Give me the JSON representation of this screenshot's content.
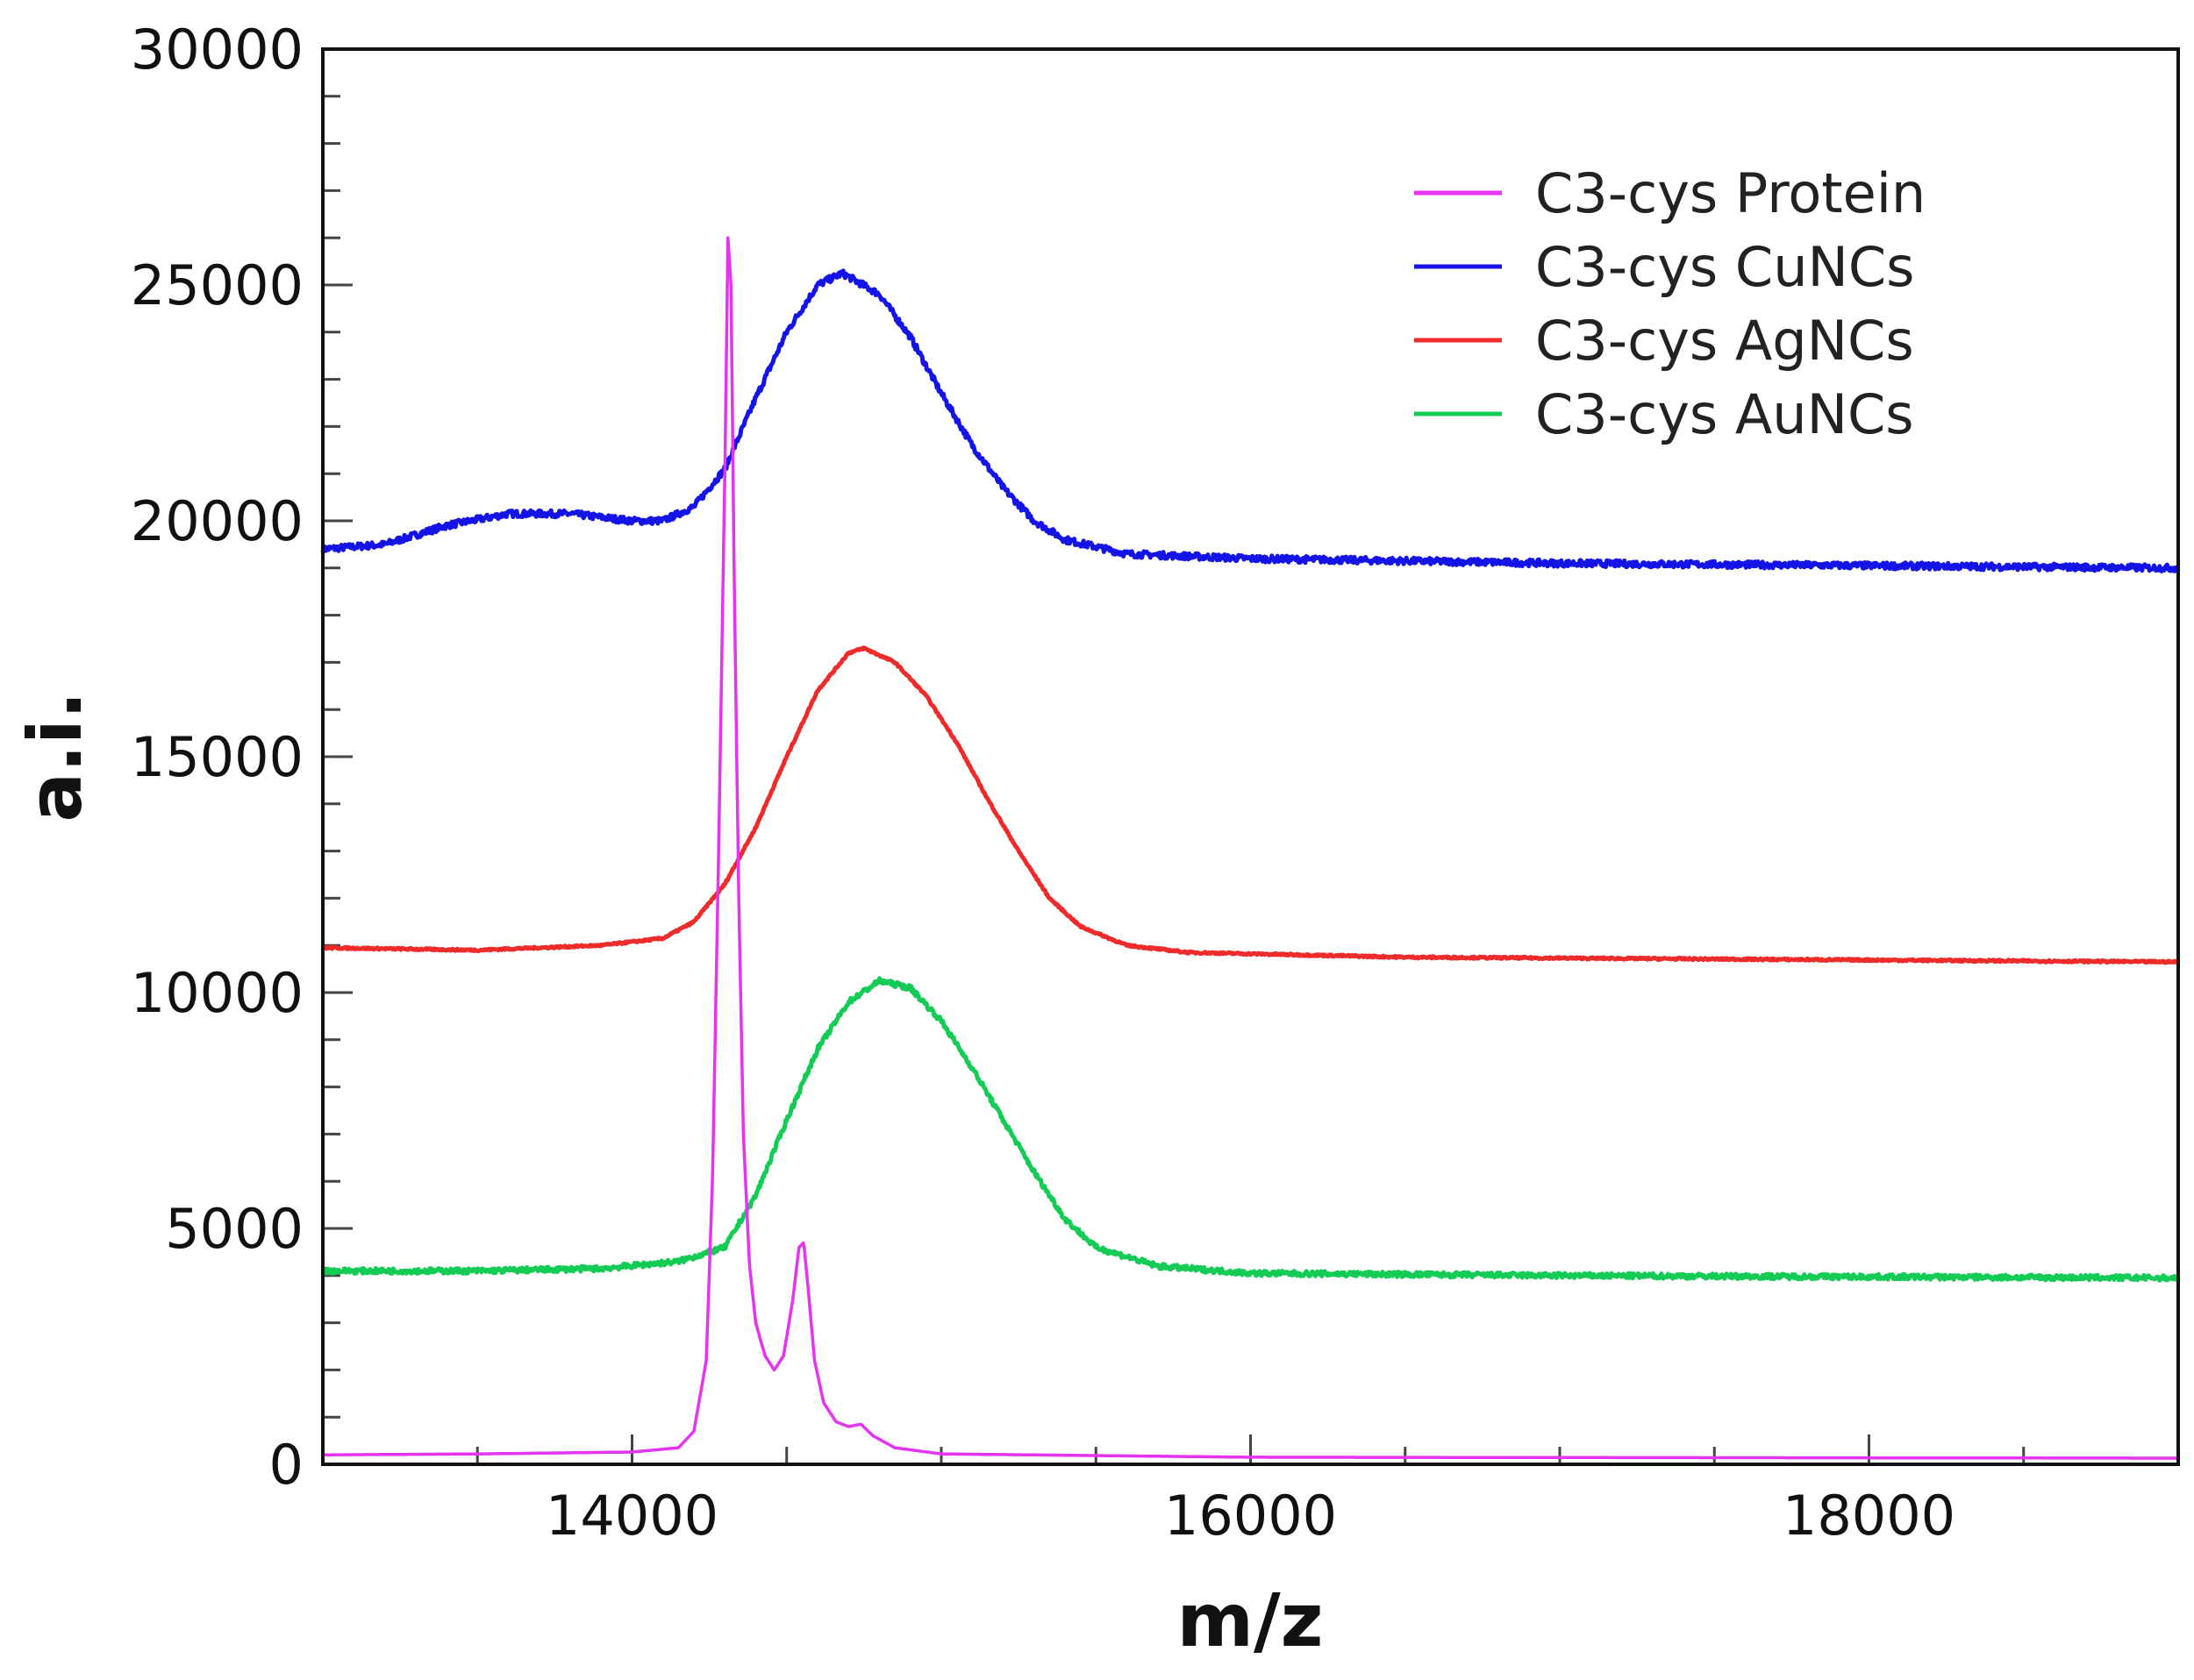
{
  "chart_data": {
    "type": "line",
    "title": "",
    "xlabel": "m/z",
    "ylabel": "a.i.",
    "xlim": [
      13000,
      19000
    ],
    "ylim": [
      0,
      30000
    ],
    "x_major_ticks": [
      14000,
      16000,
      18000
    ],
    "x_tick_labels": [
      "14000",
      "16000",
      "18000"
    ],
    "x_minor_step": 500,
    "y_major_ticks": [
      0,
      5000,
      10000,
      15000,
      20000,
      25000,
      30000
    ],
    "y_tick_labels": [
      "0",
      "5000",
      "10000",
      "15000",
      "20000",
      "25000",
      "30000"
    ],
    "y_minor_step": 1000,
    "grid": false,
    "legend_position": "top-right",
    "series": [
      {
        "name": "C3-cys Protein",
        "color": "#e533f2",
        "noise": 0,
        "points": [
          [
            13000,
            200
          ],
          [
            13500,
            220
          ],
          [
            14000,
            260
          ],
          [
            14150,
            350
          ],
          [
            14200,
            700
          ],
          [
            14240,
            2200
          ],
          [
            14260,
            6000
          ],
          [
            14280,
            13000
          ],
          [
            14300,
            21000
          ],
          [
            14310,
            26000
          ],
          [
            14320,
            25000
          ],
          [
            14330,
            19000
          ],
          [
            14345,
            12000
          ],
          [
            14360,
            7000
          ],
          [
            14380,
            4200
          ],
          [
            14400,
            3000
          ],
          [
            14430,
            2300
          ],
          [
            14460,
            2000
          ],
          [
            14490,
            2300
          ],
          [
            14520,
            3500
          ],
          [
            14540,
            4600
          ],
          [
            14555,
            4700
          ],
          [
            14570,
            3700
          ],
          [
            14590,
            2200
          ],
          [
            14620,
            1300
          ],
          [
            14660,
            900
          ],
          [
            14700,
            800
          ],
          [
            14740,
            850
          ],
          [
            14780,
            600
          ],
          [
            14850,
            350
          ],
          [
            15000,
            220
          ],
          [
            16000,
            150
          ],
          [
            19000,
            130
          ]
        ]
      },
      {
        "name": "C3-cys CuNCs",
        "color": "#1414e6",
        "noise": 70,
        "points": [
          [
            13000,
            19400
          ],
          [
            13200,
            19500
          ],
          [
            13400,
            19900
          ],
          [
            13600,
            20150
          ],
          [
            13800,
            20150
          ],
          [
            14000,
            20000
          ],
          [
            14100,
            20000
          ],
          [
            14200,
            20300
          ],
          [
            14300,
            21100
          ],
          [
            14400,
            22600
          ],
          [
            14500,
            24000
          ],
          [
            14600,
            25000
          ],
          [
            14680,
            25250
          ],
          [
            14800,
            24800
          ],
          [
            14900,
            23900
          ],
          [
            15000,
            22700
          ],
          [
            15100,
            21600
          ],
          [
            15200,
            20700
          ],
          [
            15300,
            20000
          ],
          [
            15400,
            19600
          ],
          [
            15600,
            19300
          ],
          [
            16000,
            19200
          ],
          [
            17000,
            19100
          ],
          [
            19000,
            19000
          ]
        ]
      },
      {
        "name": "C3-cys AgNCs",
        "color": "#ee2b2b",
        "noise": 20,
        "points": [
          [
            13000,
            10950
          ],
          [
            13500,
            10900
          ],
          [
            13900,
            11000
          ],
          [
            14100,
            11150
          ],
          [
            14200,
            11500
          ],
          [
            14300,
            12300
          ],
          [
            14400,
            13500
          ],
          [
            14500,
            15000
          ],
          [
            14600,
            16400
          ],
          [
            14700,
            17200
          ],
          [
            14750,
            17300
          ],
          [
            14850,
            17000
          ],
          [
            14950,
            16300
          ],
          [
            15050,
            15300
          ],
          [
            15150,
            14100
          ],
          [
            15250,
            13000
          ],
          [
            15350,
            12000
          ],
          [
            15450,
            11400
          ],
          [
            15600,
            11000
          ],
          [
            15800,
            10850
          ],
          [
            16500,
            10750
          ],
          [
            19000,
            10650
          ]
        ]
      },
      {
        "name": "C3-cys AuNCs",
        "color": "#14cc55",
        "noise": 55,
        "points": [
          [
            13000,
            4100
          ],
          [
            13500,
            4100
          ],
          [
            13900,
            4150
          ],
          [
            14150,
            4300
          ],
          [
            14300,
            4600
          ],
          [
            14400,
            5700
          ],
          [
            14500,
            7300
          ],
          [
            14600,
            8800
          ],
          [
            14700,
            9800
          ],
          [
            14800,
            10250
          ],
          [
            14900,
            10100
          ],
          [
            15000,
            9400
          ],
          [
            15100,
            8400
          ],
          [
            15200,
            7300
          ],
          [
            15300,
            6200
          ],
          [
            15400,
            5200
          ],
          [
            15500,
            4600
          ],
          [
            15700,
            4200
          ],
          [
            16000,
            4050
          ],
          [
            17000,
            4000
          ],
          [
            19000,
            3950
          ]
        ]
      }
    ]
  }
}
